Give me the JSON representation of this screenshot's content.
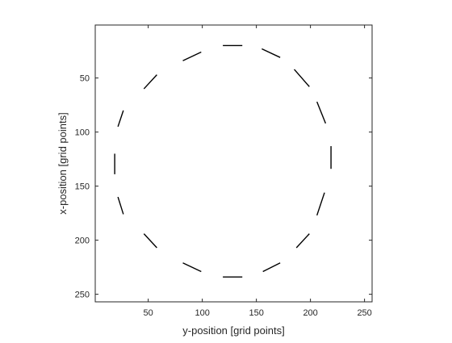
{
  "chart_data": {
    "type": "scatter",
    "title": "",
    "xlabel": "y-position [grid points]",
    "ylabel": "x-position [grid points]",
    "xlim": [
      1,
      257
    ],
    "ylim": [
      1,
      257
    ],
    "y_reversed": true,
    "grid": false,
    "legend": null,
    "xticks": [
      50,
      100,
      150,
      200,
      250
    ],
    "yticks": [
      50,
      100,
      150,
      200,
      250
    ],
    "segment_color": "#000000",
    "segments": [
      {
        "start": [
          119,
          20
        ],
        "end": [
          137,
          20
        ]
      },
      {
        "start": [
          155,
          23
        ],
        "end": [
          172,
          31
        ]
      },
      {
        "start": [
          185,
          42
        ],
        "end": [
          199,
          58
        ]
      },
      {
        "start": [
          206,
          72
        ],
        "end": [
          214,
          92
        ]
      },
      {
        "start": [
          219,
          113
        ],
        "end": [
          219,
          134
        ]
      },
      {
        "start": [
          213,
          156
        ],
        "end": [
          206,
          177
        ]
      },
      {
        "start": [
          199,
          194
        ],
        "end": [
          187,
          207
        ]
      },
      {
        "start": [
          172,
          221
        ],
        "end": [
          156,
          229
        ]
      },
      {
        "start": [
          119,
          234
        ],
        "end": [
          137,
          234
        ]
      },
      {
        "start": [
          82,
          221
        ],
        "end": [
          99,
          229
        ]
      },
      {
        "start": [
          46,
          194
        ],
        "end": [
          58,
          207
        ]
      },
      {
        "start": [
          22,
          160
        ],
        "end": [
          27,
          176
        ]
      },
      {
        "start": [
          19,
          120
        ],
        "end": [
          19,
          139
        ]
      },
      {
        "start": [
          22,
          95
        ],
        "end": [
          27,
          80
        ]
      },
      {
        "start": [
          46,
          60
        ],
        "end": [
          58,
          47
        ]
      },
      {
        "start": [
          82,
          34
        ],
        "end": [
          99,
          26
        ]
      }
    ]
  }
}
